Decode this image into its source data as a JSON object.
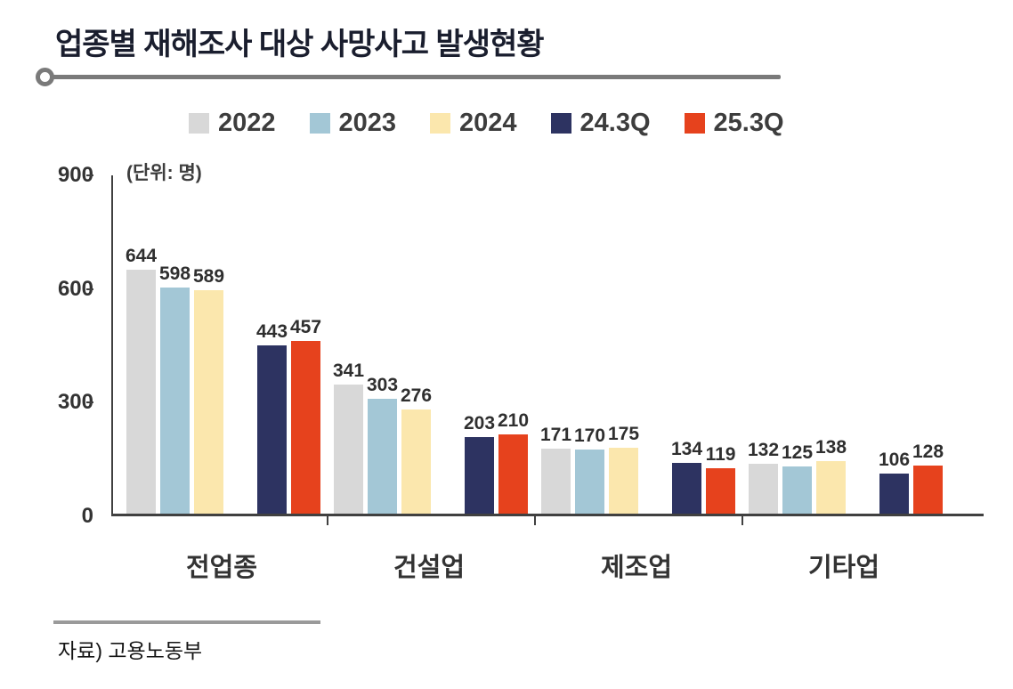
{
  "title": "업종별 재해조사 대상 사망사고 발생현황",
  "unit_label": "(단위: 명)",
  "source": "자료) 고용노동부",
  "colors": {
    "y2022": "#d8d8d8",
    "y2023": "#a3c7d6",
    "y2024": "#fbe7ad",
    "q24_3": "#2d3361",
    "q25_3": "#e6421d",
    "axis": "#404040",
    "title_text": "#1a1e2e"
  },
  "chart_data": {
    "type": "bar",
    "title": "업종별 재해조사 대상 사망사고 발생현황",
    "categories": [
      "전업종",
      "건설업",
      "제조업",
      "기타업"
    ],
    "series": [
      {
        "name": "2022",
        "color": "#d8d8d8",
        "values": [
          644,
          341,
          171,
          132
        ]
      },
      {
        "name": "2023",
        "color": "#a3c7d6",
        "values": [
          598,
          303,
          170,
          125
        ]
      },
      {
        "name": "2024",
        "color": "#fbe7ad",
        "values": [
          589,
          276,
          175,
          138
        ]
      },
      {
        "name": "24.3Q",
        "color": "#2d3361",
        "values": [
          443,
          203,
          134,
          106
        ]
      },
      {
        "name": "25.3Q",
        "color": "#e6421d",
        "values": [
          457,
          210,
          119,
          128
        ]
      }
    ],
    "ylabel": "(단위: 명)",
    "yticks": [
      0,
      300,
      600,
      900
    ],
    "ylim": [
      0,
      900
    ],
    "grid": false,
    "legend_position": "top",
    "value_labels": true
  }
}
